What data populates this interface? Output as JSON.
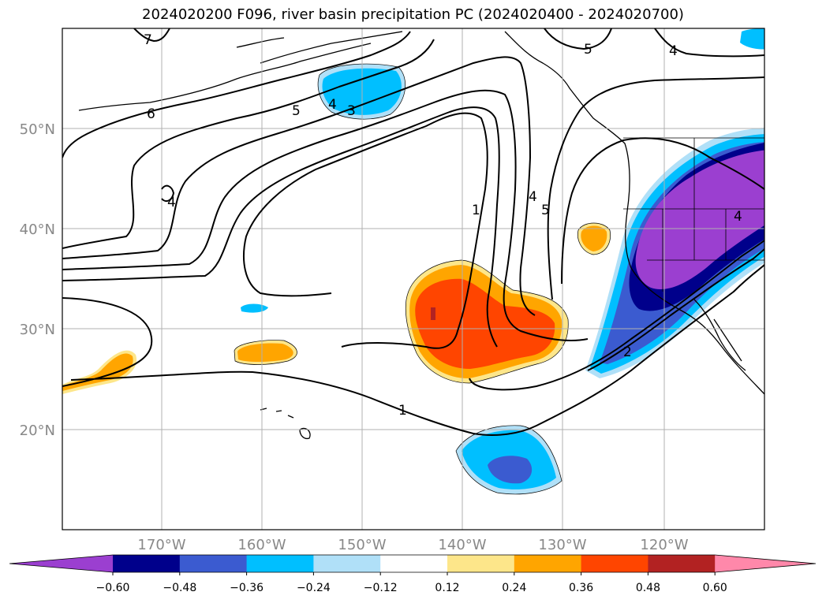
{
  "title": "2024020200 F096, river basin precipitation PC (2024020400 - 2024020700)",
  "map": {
    "lon_range": [
      180,
      110
    ],
    "lat_range": [
      10,
      60
    ],
    "lat_labels": [
      "50°N",
      "40°N",
      "30°N",
      "20°N"
    ],
    "lon_labels": [
      "170°W",
      "160°W",
      "150°W",
      "140°W",
      "130°W",
      "120°W"
    ],
    "contour_labels": [
      "6",
      "7",
      "5",
      "4",
      "3",
      "1",
      "4",
      "5",
      "5",
      "4",
      "4",
      "2",
      "1",
      "4"
    ],
    "colors": {
      "purple": "#9b3fd0",
      "navy": "#00008b",
      "royal_blue": "#3b5bd0",
      "deep_sky": "#00bfff",
      "light_blue": "#b0e0f8",
      "white": "#ffffff",
      "light_yellow": "#fde68a",
      "orange": "#ffa500",
      "orange_red": "#ff4500",
      "firebrick": "#b22222",
      "pink": "#ff88aa"
    }
  },
  "colorbar": {
    "ticks": [
      "−0.60",
      "−0.48",
      "−0.36",
      "−0.24",
      "−0.12",
      "0.12",
      "0.24",
      "0.36",
      "0.48",
      "0.60"
    ],
    "colors": [
      "#9b3fd0",
      "#00008b",
      "#3b5bd0",
      "#00bfff",
      "#b0e0f8",
      "#ffffff",
      "#fde68a",
      "#ffa500",
      "#ff4500",
      "#b22222",
      "#ff88aa"
    ]
  }
}
